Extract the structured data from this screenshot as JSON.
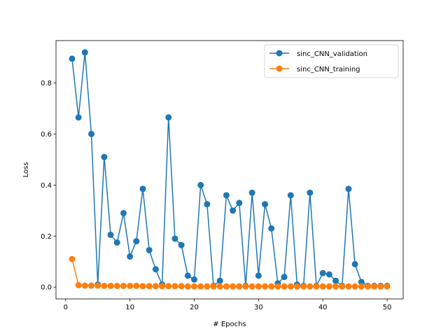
{
  "chart_data": {
    "type": "line",
    "title": "",
    "xlabel": "# Epochs",
    "ylabel": "Loss",
    "xlim": [
      -1.5,
      52.5
    ],
    "ylim": [
      -0.046,
      0.966
    ],
    "xticks": [
      0,
      10,
      20,
      30,
      40,
      50
    ],
    "yticks": [
      0.0,
      0.2,
      0.4,
      0.6,
      0.8
    ],
    "xtick_labels": [
      "0",
      "10",
      "20",
      "30",
      "40",
      "50"
    ],
    "ytick_labels": [
      "0.0",
      "0.2",
      "0.4",
      "0.6",
      "0.8"
    ],
    "grid": false,
    "legend_position": "upper right",
    "x": [
      1,
      2,
      3,
      4,
      5,
      6,
      7,
      8,
      9,
      10,
      11,
      12,
      13,
      14,
      15,
      16,
      17,
      18,
      19,
      20,
      21,
      22,
      23,
      24,
      25,
      26,
      27,
      28,
      29,
      30,
      31,
      32,
      33,
      34,
      35,
      36,
      37,
      38,
      39,
      40,
      41,
      42,
      43,
      44,
      45,
      46,
      47,
      48,
      49,
      50
    ],
    "series": [
      {
        "name": "sinc_CNN_validation",
        "color": "#1f77b4",
        "values": [
          0.895,
          0.665,
          0.92,
          0.6,
          0.01,
          0.51,
          0.205,
          0.175,
          0.29,
          0.12,
          0.18,
          0.385,
          0.145,
          0.07,
          0.01,
          0.665,
          0.19,
          0.165,
          0.045,
          0.03,
          0.4,
          0.325,
          0.005,
          0.025,
          0.36,
          0.3,
          0.33,
          0.005,
          0.37,
          0.045,
          0.325,
          0.23,
          0.015,
          0.04,
          0.36,
          0.01,
          0.005,
          0.37,
          0.005,
          0.055,
          0.05,
          0.025,
          0.005,
          0.385,
          0.09,
          0.02,
          0.005,
          0.005,
          0.005,
          0.005
        ]
      },
      {
        "name": "sinc_CNN_training",
        "color": "#ff7f0e",
        "values": [
          0.11,
          0.008,
          0.006,
          0.006,
          0.006,
          0.005,
          0.005,
          0.005,
          0.005,
          0.005,
          0.005,
          0.004,
          0.004,
          0.004,
          0.004,
          0.004,
          0.004,
          0.004,
          0.003,
          0.003,
          0.003,
          0.003,
          0.003,
          0.003,
          0.003,
          0.003,
          0.003,
          0.003,
          0.003,
          0.003,
          0.003,
          0.003,
          0.003,
          0.003,
          0.003,
          0.003,
          0.003,
          0.003,
          0.003,
          0.003,
          0.003,
          0.003,
          0.003,
          0.003,
          0.003,
          0.003,
          0.003,
          0.003,
          0.003,
          0.003
        ]
      }
    ]
  }
}
